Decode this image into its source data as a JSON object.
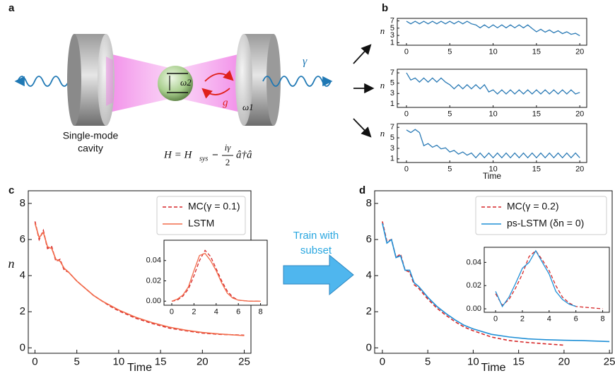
{
  "panel_labels": [
    "a",
    "b",
    "c",
    "d"
  ],
  "diagram": {
    "cavity_label": [
      "Single-mode",
      "cavity"
    ],
    "omega2": "ω2",
    "omega1": "ω1",
    "coupling": "g",
    "decay": "γ",
    "eq_lhs": "H = H",
    "eq_sub": "sys",
    "eq_minus": "−",
    "eq_num": "iγ",
    "eq_den": "2",
    "eq_op": "â†â"
  },
  "arrow_text": [
    "Train with",
    "subset"
  ],
  "chart_data": [
    {
      "type": "line",
      "ylabel": "n",
      "xlim": [
        -1.06,
        20.8
      ],
      "ylim": [
        0.3,
        7.7
      ],
      "xticks": [
        0,
        5,
        10,
        15,
        20
      ],
      "yticks": [
        1,
        3,
        5,
        7
      ],
      "x": [
        0,
        0.5,
        1,
        1.5,
        2,
        2.5,
        3,
        3.5,
        4,
        4.5,
        5,
        5.5,
        6,
        6.5,
        7,
        7.5,
        8,
        8.5,
        9,
        9.5,
        10,
        10.5,
        11,
        11.5,
        12,
        12.5,
        13,
        13.5,
        14,
        14.5,
        15,
        15.5,
        16,
        16.5,
        17,
        17.5,
        18,
        18.5,
        19,
        19.5,
        20
      ],
      "series": [
        {
          "color": "#2a7ab5",
          "values": [
            6.9,
            6.2,
            6.9,
            6.2,
            6.9,
            6.2,
            6.9,
            6.2,
            6.9,
            6.2,
            6.9,
            6.2,
            6.9,
            6.2,
            6.9,
            6.2,
            5.9,
            5.1,
            5.9,
            5.1,
            5.9,
            5.1,
            5.9,
            5.1,
            5.9,
            5.1,
            5.9,
            5.1,
            5.9,
            4.9,
            4.0,
            4.7,
            3.9,
            4.5,
            3.7,
            4.3,
            3.5,
            4.0,
            3.3,
            3.6,
            2.9
          ]
        }
      ]
    },
    {
      "type": "line",
      "ylabel": "n",
      "xlim": [
        -1.06,
        20.8
      ],
      "ylim": [
        0.3,
        7.7
      ],
      "xticks": [
        0,
        5,
        10,
        15,
        20
      ],
      "yticks": [
        1,
        3,
        5,
        7
      ],
      "x": [
        0,
        0.5,
        1,
        1.5,
        2,
        2.5,
        3,
        3.5,
        4,
        4.5,
        5,
        5.5,
        6,
        6.5,
        7,
        7.5,
        8,
        8.5,
        9,
        9.5,
        10,
        10.5,
        11,
        11.5,
        12,
        12.5,
        13,
        13.5,
        14,
        14.5,
        15,
        15.5,
        16,
        16.5,
        17,
        17.5,
        18,
        18.5,
        19,
        19.5,
        20
      ],
      "series": [
        {
          "color": "#2a7ab5",
          "values": [
            7.0,
            5.6,
            6.0,
            5.2,
            6.0,
            5.2,
            6.0,
            5.2,
            6.0,
            5.2,
            4.7,
            3.9,
            4.7,
            3.9,
            4.7,
            3.9,
            4.7,
            3.9,
            4.7,
            3.3,
            3.7,
            2.9,
            3.7,
            2.9,
            3.7,
            2.9,
            3.7,
            2.9,
            3.7,
            2.9,
            3.7,
            2.9,
            3.7,
            2.9,
            3.7,
            2.9,
            3.7,
            2.9,
            3.7,
            2.9,
            3.2
          ]
        }
      ]
    },
    {
      "type": "line",
      "ylabel": "n",
      "xlabel": "Time",
      "xlim": [
        -1.06,
        20.8
      ],
      "ylim": [
        0.3,
        7.7
      ],
      "xticks": [
        0,
        5,
        10,
        15,
        20
      ],
      "yticks": [
        1,
        3,
        5,
        7
      ],
      "x": [
        0,
        0.5,
        1,
        1.5,
        2,
        2.5,
        3,
        3.5,
        4,
        4.5,
        5,
        5.5,
        6,
        6.5,
        7,
        7.5,
        8,
        8.5,
        9,
        9.5,
        10,
        10.5,
        11,
        11.5,
        12,
        12.5,
        13,
        13.5,
        14,
        14.5,
        15,
        15.5,
        16,
        16.5,
        17,
        17.5,
        18,
        18.5,
        19,
        19.5,
        20
      ],
      "series": [
        {
          "color": "#2a7ab5",
          "values": [
            6.5,
            6.0,
            6.6,
            6.0,
            3.5,
            3.9,
            3.2,
            3.6,
            2.9,
            3.1,
            2.3,
            2.6,
            1.9,
            2.3,
            1.7,
            2.1,
            1.2,
            2.1,
            1.2,
            2.1,
            1.2,
            2.1,
            1.2,
            2.1,
            1.2,
            2.1,
            1.2,
            2.1,
            1.2,
            2.1,
            1.2,
            2.1,
            1.2,
            2.1,
            1.2,
            2.1,
            1.2,
            2.1,
            1.2,
            2.1,
            1.2
          ]
        }
      ]
    },
    {
      "type": "line",
      "ylabel": "n",
      "xlabel": "Time",
      "xlim": [
        -0.8,
        25.8
      ],
      "ylim": [
        -0.3,
        8.7
      ],
      "xticks": [
        0,
        5,
        10,
        15,
        20,
        25
      ],
      "yticks": [
        0,
        2,
        4,
        6,
        8
      ],
      "legend": "upper right",
      "x": [
        0,
        0.5,
        1,
        1.5,
        2,
        2.5,
        3,
        3.5,
        4,
        5,
        6,
        7,
        8,
        9,
        10,
        12,
        14,
        16,
        18,
        20,
        22,
        25
      ],
      "series": [
        {
          "name": "MC(γ = 0.1)",
          "color": "#d62728",
          "dashed": true,
          "values": [
            7.0,
            6.0,
            6.5,
            5.5,
            5.6,
            4.8,
            4.9,
            4.3,
            4.2,
            3.7,
            3.3,
            2.9,
            2.6,
            2.3,
            2.05,
            1.65,
            1.35,
            1.1,
            0.95,
            0.82,
            0.75,
            0.7
          ]
        },
        {
          "name": "LSTM",
          "color": "#f26b4a",
          "values": [
            6.9,
            6.1,
            6.4,
            5.6,
            5.5,
            4.9,
            4.8,
            4.4,
            4.2,
            3.7,
            3.3,
            2.9,
            2.6,
            2.35,
            2.1,
            1.7,
            1.4,
            1.15,
            0.98,
            0.85,
            0.77,
            0.68
          ]
        }
      ]
    },
    {
      "type": "line",
      "xlim": [
        -0.7,
        8.6
      ],
      "ylim": [
        -0.004,
        0.06
      ],
      "xticks": [
        0,
        2,
        4,
        6,
        8
      ],
      "yticks": [
        {
          "value": 0,
          "label": "0.00"
        },
        {
          "value": 0.02,
          "label": "0.02"
        },
        {
          "value": 0.04,
          "label": "0.04"
        }
      ],
      "x": [
        0,
        0.5,
        1,
        1.5,
        2,
        2.5,
        3,
        3.5,
        4,
        4.5,
        5,
        5.5,
        6,
        7,
        8
      ],
      "series": [
        {
          "color": "#d62728",
          "dashed": true,
          "values": [
            0,
            0.001,
            0.005,
            0.012,
            0.025,
            0.04,
            0.05,
            0.044,
            0.032,
            0.02,
            0.01,
            0.004,
            0.001,
            0,
            0
          ]
        },
        {
          "color": "#f26b4a",
          "values": [
            0,
            0.002,
            0.006,
            0.014,
            0.03,
            0.045,
            0.047,
            0.04,
            0.03,
            0.018,
            0.008,
            0.003,
            0.001,
            0,
            0
          ]
        }
      ]
    },
    {
      "type": "line",
      "xlabel": "Time",
      "xlim": [
        -0.85,
        25.3
      ],
      "ylim": [
        -0.3,
        8.7
      ],
      "xticks": [
        0,
        5,
        10,
        15,
        20,
        25
      ],
      "yticks": [
        0,
        2,
        4,
        6,
        8
      ],
      "legend": "upper right",
      "x": [
        0,
        0.5,
        1,
        1.5,
        2,
        2.5,
        3,
        3.5,
        4,
        5,
        6,
        7,
        8,
        9,
        10,
        12,
        14,
        16,
        18,
        20,
        22,
        25
      ],
      "series": [
        {
          "name": "MC(γ = 0.2)",
          "color": "#d62728",
          "dashed": true,
          "values": [
            7.0,
            5.9,
            6.0,
            5.0,
            5.2,
            4.3,
            4.2,
            3.5,
            3.3,
            2.7,
            2.2,
            1.8,
            1.45,
            1.15,
            0.95,
            0.6,
            0.4,
            0.3,
            0.22,
            0.15,
            null,
            null
          ]
        },
        {
          "name": "ps-LSTM (δn = 0)",
          "color": "#1f8fd6",
          "values": [
            6.9,
            5.8,
            6.0,
            5.0,
            5.1,
            4.3,
            4.3,
            3.6,
            3.4,
            2.8,
            2.3,
            1.9,
            1.55,
            1.25,
            1.05,
            0.75,
            0.6,
            0.5,
            0.45,
            0.42,
            0.4,
            0.35
          ]
        }
      ]
    },
    {
      "type": "line",
      "xlim": [
        -0.85,
        8.5
      ],
      "ylim": [
        -0.003,
        0.053
      ],
      "xticks": [
        0,
        2,
        4,
        6,
        8
      ],
      "yticks": [
        {
          "value": 0,
          "label": "0.00"
        },
        {
          "value": 0.02,
          "label": "0.02"
        },
        {
          "value": 0.04,
          "label": "0.04"
        }
      ],
      "x": [
        0,
        0.5,
        1,
        1.5,
        2,
        2.5,
        3,
        3.5,
        4,
        4.5,
        5,
        5.5,
        6,
        7,
        8
      ],
      "series": [
        {
          "color": "#d62728",
          "dashed": true,
          "values": [
            0.013,
            0.003,
            0.008,
            0.018,
            0.03,
            0.045,
            0.05,
            0.042,
            0.033,
            0.02,
            0.01,
            0.005,
            0.002,
            0.001,
            0
          ]
        },
        {
          "color": "#1f8fd6",
          "values": [
            0.015,
            0.002,
            0.01,
            0.022,
            0.035,
            0.04,
            0.05,
            0.04,
            0.03,
            0.015,
            0.008,
            0.004,
            0.002,
            null,
            null
          ]
        }
      ]
    }
  ]
}
